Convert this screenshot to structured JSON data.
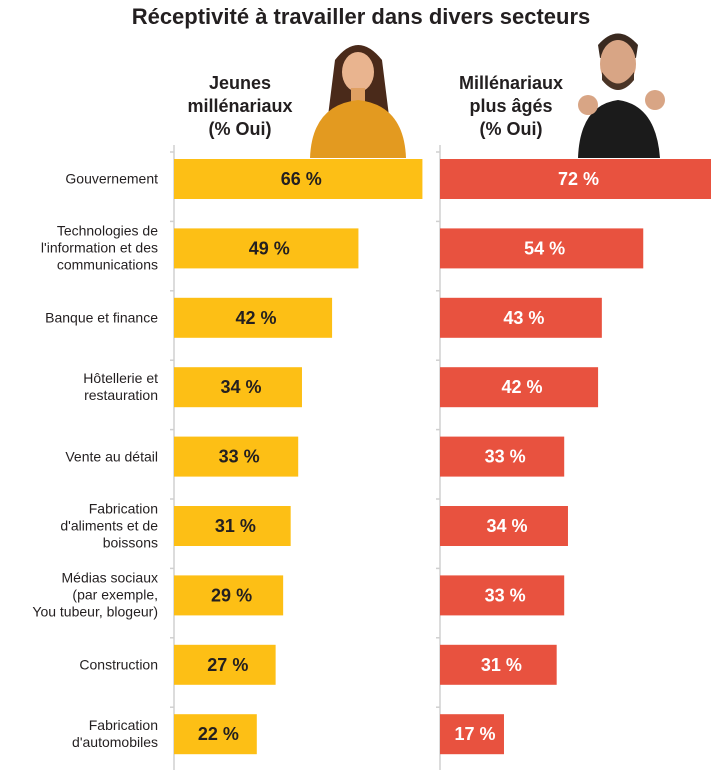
{
  "chart_data": {
    "type": "bar",
    "orientation": "horizontal",
    "title": "Réceptivité à travailler dans divers secteurs",
    "categories": [
      "Gouvernement",
      "Technologies de l'information et des communications",
      "Banque et finance",
      "Hôtellerie et restauration",
      "Vente au détail",
      "Fabrication d'aliments et de boissons",
      "Médias sociaux (par exemple, You tubeur, blogeur)",
      "Construction",
      "Fabrication d'automobiles"
    ],
    "category_lines": [
      [
        "Gouvernement"
      ],
      [
        "Technologies de",
        "l'information et des",
        "communications"
      ],
      [
        "Banque et finance"
      ],
      [
        "Hôtellerie et",
        "restauration"
      ],
      [
        "Vente au détail"
      ],
      [
        "Fabrication",
        "d'aliments et de",
        "boissons"
      ],
      [
        "Médias sociaux",
        "(par exemple,",
        "You tubeur, blogeur)"
      ],
      [
        "Construction"
      ],
      [
        "Fabrication",
        "d'automobiles"
      ]
    ],
    "series": [
      {
        "name": "Jeunes millénariaux (% Oui)",
        "name_lines": [
          "Jeunes",
          "millénariaux",
          "(% Oui)"
        ],
        "color": "#fdbf15",
        "label_color": "#231f20",
        "values": [
          66,
          49,
          42,
          34,
          33,
          31,
          29,
          27,
          22
        ]
      },
      {
        "name": "Millénariaux plus âgés (% Oui)",
        "name_lines": [
          "Millénariaux",
          "plus âgés",
          "(% Oui)"
        ],
        "color": "#e8523f",
        "label_color": "#ffffff",
        "values": [
          72,
          54,
          43,
          42,
          33,
          34,
          33,
          31,
          17
        ]
      }
    ],
    "value_suffix": " %",
    "xlim": [
      0,
      72
    ]
  }
}
